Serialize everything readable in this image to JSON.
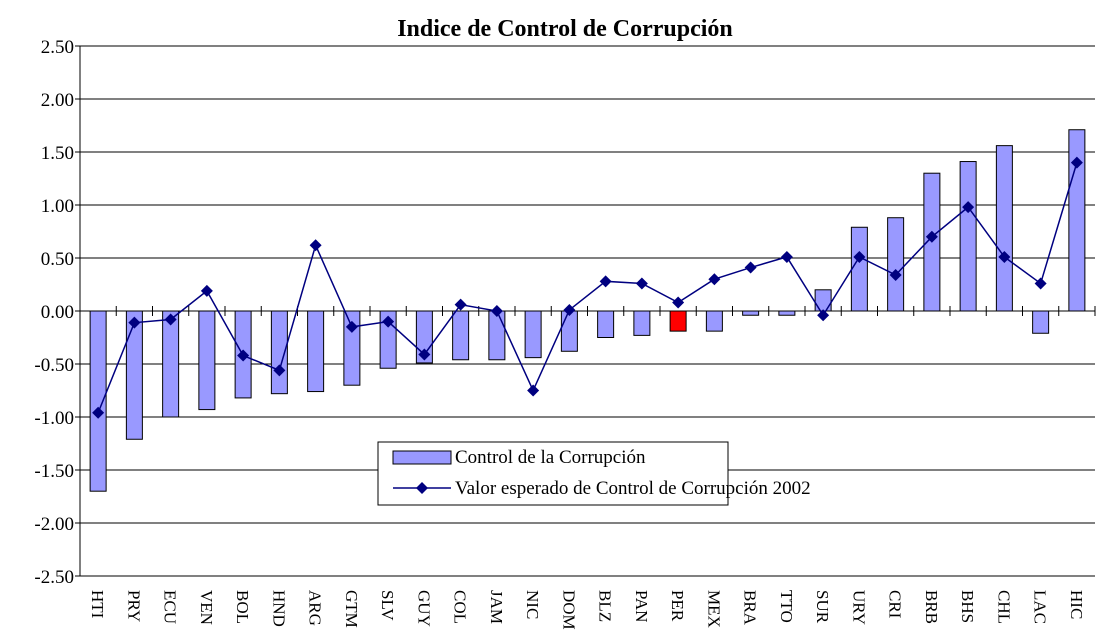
{
  "chart_data": {
    "type": "bar-line",
    "title": "Indice de Control de Corrupción",
    "categories": [
      "HTI",
      "PRY",
      "ECU",
      "VEN",
      "BOL",
      "HND",
      "ARG",
      "GTM",
      "SLV",
      "GUY",
      "COL",
      "JAM",
      "NIC",
      "DOM",
      "BLZ",
      "PAN",
      "PER",
      "MEX",
      "BRA",
      "TTO",
      "SUR",
      "URY",
      "CRI",
      "BRB",
      "BHS",
      "CHL",
      "LAC",
      "HIC"
    ],
    "series": [
      {
        "name": "Control de la Corrupción",
        "type": "bar",
        "color": "#9999ff",
        "point_colors": [
          "#9999ff",
          "#9999ff",
          "#9999ff",
          "#9999ff",
          "#9999ff",
          "#9999ff",
          "#9999ff",
          "#9999ff",
          "#9999ff",
          "#9999ff",
          "#9999ff",
          "#9999ff",
          "#9999ff",
          "#9999ff",
          "#9999ff",
          "#9999ff",
          "#ff0000",
          "#9999ff",
          "#9999ff",
          "#9999ff",
          "#9999ff",
          "#9999ff",
          "#9999ff",
          "#9999ff",
          "#9999ff",
          "#9999ff",
          "#9999ff",
          "#9999ff"
        ],
        "values": [
          -1.7,
          -1.21,
          -1.0,
          -0.93,
          -0.82,
          -0.78,
          -0.76,
          -0.7,
          -0.54,
          -0.49,
          -0.46,
          -0.46,
          -0.44,
          -0.38,
          -0.25,
          -0.23,
          -0.19,
          -0.19,
          -0.04,
          -0.04,
          0.2,
          0.79,
          0.88,
          1.3,
          1.41,
          1.56,
          -0.21,
          1.71
        ]
      },
      {
        "name": "Valor esperado de Control de Corrupción 2002",
        "type": "line",
        "color": "#000080",
        "values": [
          -0.96,
          -0.11,
          -0.08,
          0.19,
          -0.42,
          -0.56,
          0.62,
          -0.15,
          -0.1,
          -0.41,
          0.06,
          0.0,
          -0.75,
          0.01,
          0.28,
          0.26,
          0.08,
          0.3,
          0.41,
          0.51,
          -0.04,
          0.51,
          0.34,
          0.7,
          0.98,
          0.51,
          0.26,
          1.4
        ]
      }
    ],
    "ylim": [
      -2.5,
      2.5
    ],
    "yticks": [
      {
        "value": -2.5,
        "label": "-2.50"
      },
      {
        "value": -2,
        "label": "-2.00"
      },
      {
        "value": -1.5,
        "label": "-1.50"
      },
      {
        "value": -1,
        "label": "-1.00"
      },
      {
        "value": -0.5,
        "label": "-0.50"
      },
      {
        "value": 0,
        "label": "0.00"
      },
      {
        "value": 0.5,
        "label": "0.50"
      },
      {
        "value": 1,
        "label": "1.00"
      },
      {
        "value": 1.5,
        "label": "1.50"
      },
      {
        "value": 2,
        "label": "2.00"
      },
      {
        "value": 2.5,
        "label": "2.50"
      }
    ],
    "grid": true,
    "legend": "lower center"
  }
}
